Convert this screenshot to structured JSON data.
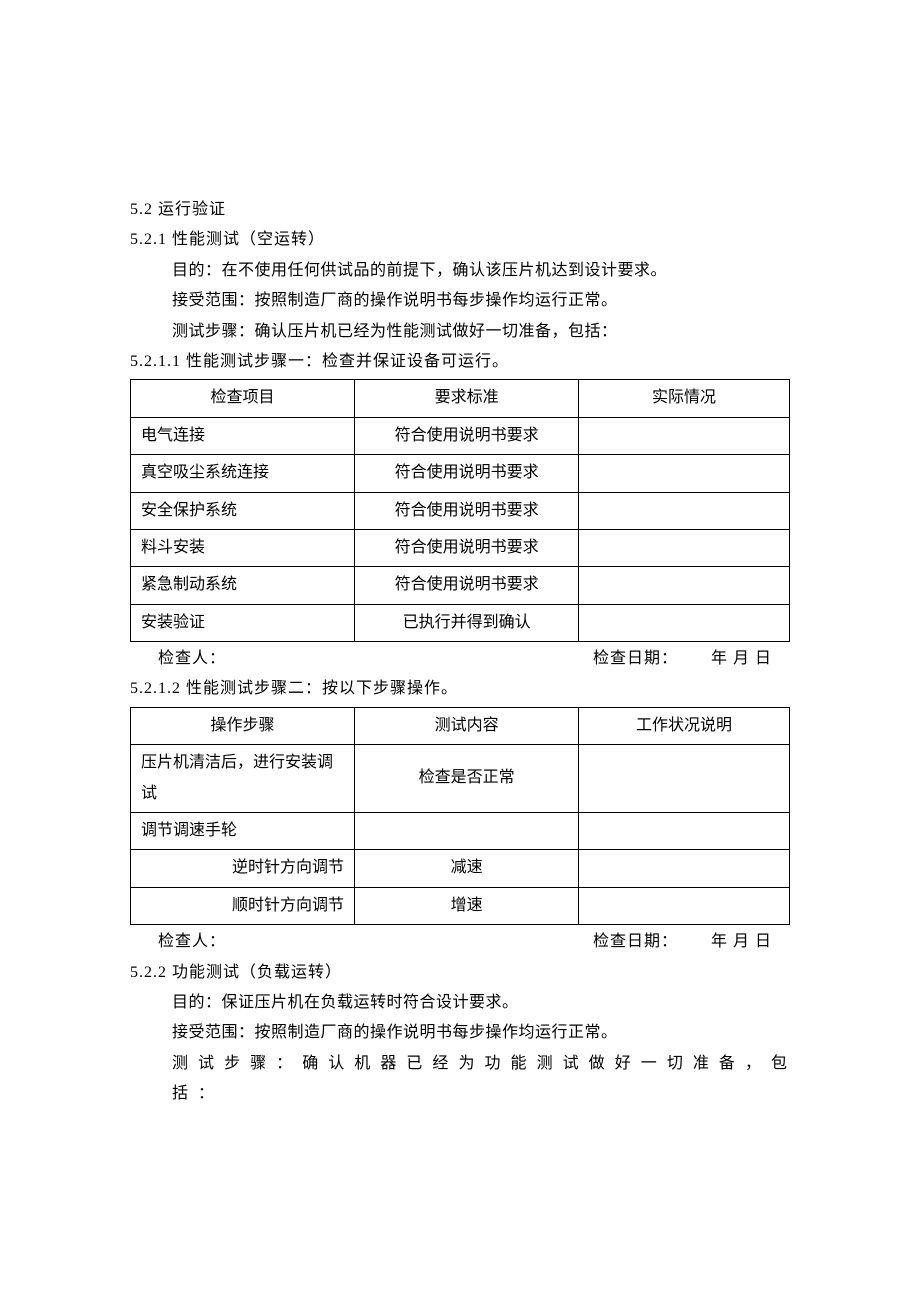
{
  "section_5_2": {
    "heading": "5.2 运行验证",
    "sub_5_2_1": {
      "heading": "5.2.1 性能测试（空运转）",
      "purpose": "目的：在不使用任何供试品的前提下，确认该压片机达到设计要求。",
      "acceptance": "接受范围：按照制造厂商的操作说明书每步操作均运行正常。",
      "test_steps": "测试步骤：确认压片机已经为性能测试做好一切准备，包括：",
      "step_5_2_1_1": {
        "heading": "5.2.1.1 性能测试步骤一：检查并保证设备可运行。",
        "table": {
          "columns": [
            "检查项目",
            "要求标准",
            "实际情况"
          ],
          "rows": [
            [
              "电气连接",
              "符合使用说明书要求",
              ""
            ],
            [
              "真空吸尘系统连接",
              "符合使用说明书要求",
              ""
            ],
            [
              "安全保护系统",
              "符合使用说明书要求",
              ""
            ],
            [
              "料斗安装",
              "符合使用说明书要求",
              ""
            ],
            [
              "紧急制动系统",
              "符合使用说明书要求",
              ""
            ],
            [
              "安装验证",
              "已执行并得到确认",
              ""
            ]
          ]
        },
        "inspector": "检查人：",
        "date_label": "检查日期：",
        "date_value": "年    月    日"
      },
      "step_5_2_1_2": {
        "heading": "5.2.1.2 性能测试步骤二：按以下步骤操作。",
        "table": {
          "columns": [
            "操作步骤",
            "测试内容",
            "工作状况说明"
          ],
          "rows": [
            {
              "c1": "压片机清洁后，进行安装调试",
              "c2": "检查是否正常",
              "c3": "",
              "align": "left"
            },
            {
              "c1": "调节调速手轮",
              "c2": "",
              "c3": "",
              "align": "left"
            },
            {
              "c1": "逆时针方向调节",
              "c2": "减速",
              "c3": "",
              "align": "right"
            },
            {
              "c1": "顺时针方向调节",
              "c2": "增速",
              "c3": "",
              "align": "right"
            }
          ]
        },
        "inspector": "检查人：",
        "date_label": "检查日期：",
        "date_value": "年    月    日"
      }
    },
    "sub_5_2_2": {
      "heading": "5.2.2 功能测试（负载运转）",
      "purpose": "目的：保证压片机在负载运转时符合设计要求。",
      "acceptance": "接受范围：按照制造厂商的操作说明书每步操作均运行正常。",
      "test_steps": "测 试 步 骤 ： 确 认 机 器 已 经 为 功 能 测 试 做 好 一 切 准 备 ， 包 括 ："
    }
  }
}
